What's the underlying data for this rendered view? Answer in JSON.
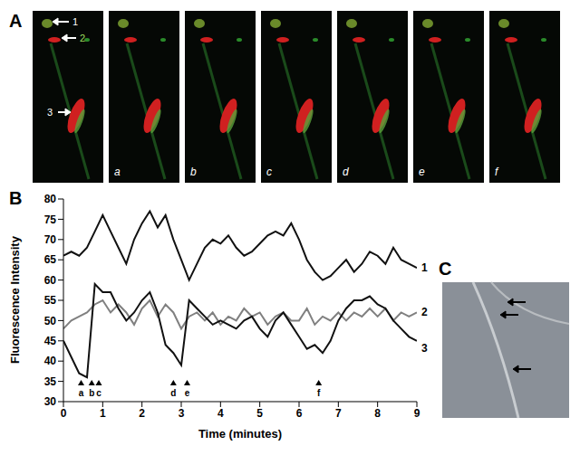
{
  "chart_data": {
    "type": "line",
    "x_label": "Time (minutes)",
    "y_label": "Fluorescence Intensity",
    "xlim": [
      0,
      9
    ],
    "xticks": [
      0,
      1,
      2,
      3,
      4,
      5,
      6,
      7,
      8,
      9
    ],
    "ylim": [
      30,
      80
    ],
    "yticks": [
      30,
      35,
      40,
      45,
      50,
      55,
      60,
      65,
      70,
      75,
      80
    ],
    "grid": false,
    "x": [
      0,
      0.2,
      0.4,
      0.6,
      0.8,
      1.0,
      1.2,
      1.4,
      1.6,
      1.8,
      2.0,
      2.2,
      2.4,
      2.6,
      2.8,
      3.0,
      3.2,
      3.4,
      3.6,
      3.8,
      4.0,
      4.2,
      4.4,
      4.6,
      4.8,
      5.0,
      5.2,
      5.4,
      5.6,
      5.8,
      6.0,
      6.2,
      6.4,
      6.6,
      6.8,
      7.0,
      7.2,
      7.4,
      7.6,
      7.8,
      8.0,
      8.2,
      8.4,
      8.6,
      8.8,
      9.0
    ],
    "series": [
      {
        "name": "1",
        "color": "#111111",
        "values": [
          66,
          67,
          66,
          68,
          72,
          76,
          72,
          68,
          64,
          70,
          74,
          77,
          73,
          76,
          70,
          65,
          60,
          64,
          68,
          70,
          69,
          71,
          68,
          66,
          67,
          69,
          71,
          72,
          71,
          74,
          70,
          65,
          62,
          60,
          61,
          63,
          65,
          62,
          64,
          67,
          66,
          64,
          68,
          65,
          64,
          63
        ]
      },
      {
        "name": "2",
        "color": "#808080",
        "values": [
          48,
          50,
          51,
          52,
          54,
          55,
          52,
          54,
          52,
          49,
          53,
          55,
          51,
          54,
          52,
          48,
          51,
          52,
          50,
          52,
          49,
          51,
          50,
          53,
          51,
          52,
          49,
          51,
          52,
          50,
          50,
          53,
          49,
          51,
          50,
          52,
          50,
          52,
          51,
          53,
          51,
          53,
          50,
          52,
          51,
          52
        ]
      },
      {
        "name": "3",
        "color": "#111111",
        "values": [
          45,
          41,
          37,
          36,
          59,
          57,
          57,
          53,
          50,
          52,
          55,
          57,
          52,
          44,
          42,
          39,
          55,
          53,
          51,
          49,
          50,
          49,
          48,
          50,
          51,
          48,
          46,
          50,
          52,
          49,
          46,
          43,
          44,
          42,
          45,
          50,
          53,
          55,
          55,
          56,
          54,
          53,
          50,
          48,
          46,
          45
        ]
      }
    ],
    "annotations": [
      {
        "x": 0.45,
        "text": "a"
      },
      {
        "x": 0.72,
        "text": "b"
      },
      {
        "x": 0.9,
        "text": "c"
      },
      {
        "x": 2.8,
        "text": "d"
      },
      {
        "x": 3.15,
        "text": "e"
      },
      {
        "x": 6.5,
        "text": "f"
      }
    ]
  },
  "panel_labels": [
    "A",
    "B",
    "C"
  ],
  "image_labels": {
    "frames": [
      "a",
      "b",
      "c",
      "d",
      "e",
      "f"
    ],
    "arrows": [
      "1",
      "2",
      "3"
    ]
  }
}
